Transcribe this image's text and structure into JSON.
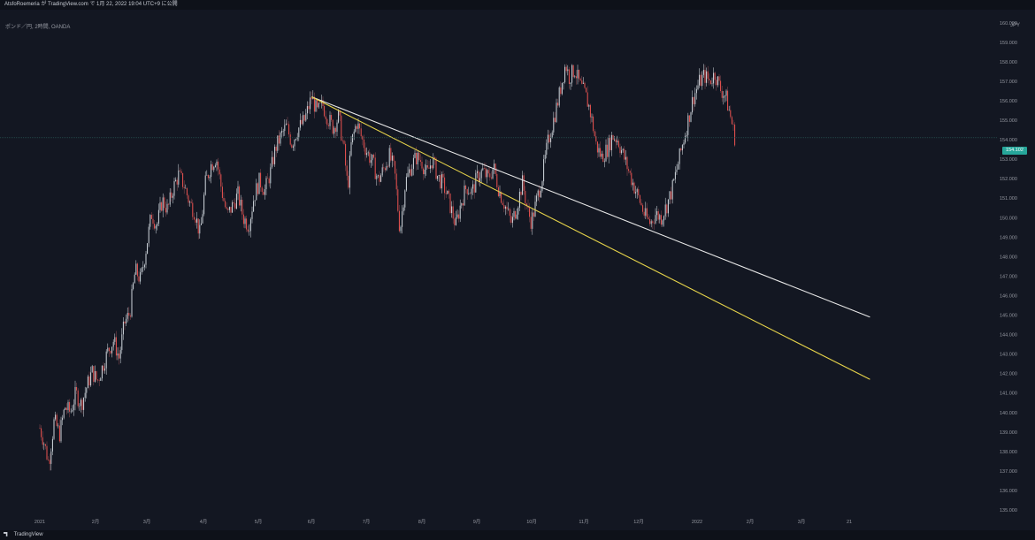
{
  "header": {
    "caption": "AtsfoRoemeria が TradingView.com で 1月 22, 2022 19:04 UTC+9 に公開"
  },
  "footer": {
    "brand": "TradingView"
  },
  "chart_data": {
    "type": "candlestick",
    "symbol_label": "ポンド／円, 2時間, OANDA",
    "currency": "JPY",
    "last_price": "154.102",
    "ylim": [
      135.0,
      160.4
    ],
    "y_ticks": [
      "160.000",
      "159.000",
      "158.000",
      "157.000",
      "156.000",
      "155.000",
      "154.000",
      "153.000",
      "152.000",
      "151.000",
      "150.000",
      "149.000",
      "148.000",
      "147.000",
      "146.000",
      "145.000",
      "144.000",
      "143.000",
      "142.000",
      "141.000",
      "140.000",
      "139.000",
      "138.000",
      "137.000",
      "136.000",
      "135.000"
    ],
    "x_ticks": [
      "2021",
      "2月",
      "3月",
      "4月",
      "5月",
      "6月",
      "7月",
      "8月",
      "9月",
      "10月",
      "11月",
      "12月",
      "2022",
      "2月",
      "3月",
      "21"
    ],
    "price_path": [
      [
        "2021-01-01",
        139.2
      ],
      [
        "2021-01-03",
        138.6
      ],
      [
        "2021-01-06",
        137.4
      ],
      [
        "2021-01-09",
        139.6
      ],
      [
        "2021-01-12",
        138.9
      ],
      [
        "2021-01-15",
        140.3
      ],
      [
        "2021-01-18",
        140.0
      ],
      [
        "2021-01-21",
        141.0
      ],
      [
        "2021-01-24",
        140.4
      ],
      [
        "2021-01-27",
        141.3
      ],
      [
        "2021-01-30",
        142.1
      ],
      [
        "2021-02-02",
        141.6
      ],
      [
        "2021-02-05",
        142.4
      ],
      [
        "2021-02-08",
        143.2
      ],
      [
        "2021-02-11",
        143.7
      ],
      [
        "2021-02-14",
        142.8
      ],
      [
        "2021-02-17",
        144.6
      ],
      [
        "2021-02-20",
        145.1
      ],
      [
        "2021-02-23",
        147.3
      ],
      [
        "2021-02-26",
        146.8
      ],
      [
        "2021-03-01",
        148.4
      ],
      [
        "2021-03-04",
        150.2
      ],
      [
        "2021-03-07",
        149.6
      ],
      [
        "2021-03-10",
        150.9
      ],
      [
        "2021-03-13",
        150.4
      ],
      [
        "2021-03-16",
        151.5
      ],
      [
        "2021-03-19",
        152.2
      ],
      [
        "2021-03-22",
        151.7
      ],
      [
        "2021-03-25",
        150.8
      ],
      [
        "2021-03-28",
        150.3
      ],
      [
        "2021-03-31",
        149.1
      ],
      [
        "2021-04-03",
        151.8
      ],
      [
        "2021-04-06",
        152.7
      ],
      [
        "2021-04-09",
        153.1
      ],
      [
        "2021-04-12",
        151.4
      ],
      [
        "2021-04-15",
        150.1
      ],
      [
        "2021-04-18",
        150.6
      ],
      [
        "2021-04-21",
        151.2
      ],
      [
        "2021-04-24",
        150.0
      ],
      [
        "2021-04-27",
        149.6
      ],
      [
        "2021-04-30",
        151.1
      ],
      [
        "2021-05-03",
        151.9
      ],
      [
        "2021-05-06",
        151.4
      ],
      [
        "2021-05-09",
        152.3
      ],
      [
        "2021-05-12",
        153.6
      ],
      [
        "2021-05-15",
        154.2
      ],
      [
        "2021-05-18",
        154.7
      ],
      [
        "2021-05-21",
        153.8
      ],
      [
        "2021-05-24",
        154.5
      ],
      [
        "2021-05-28",
        155.0
      ],
      [
        "2021-06-01",
        156.2
      ],
      [
        "2021-06-04",
        155.4
      ],
      [
        "2021-06-07",
        155.8
      ],
      [
        "2021-06-10",
        155.1
      ],
      [
        "2021-06-13",
        154.6
      ],
      [
        "2021-06-16",
        155.2
      ],
      [
        "2021-06-19",
        153.4
      ],
      [
        "2021-06-21",
        151.5
      ],
      [
        "2021-06-23",
        153.8
      ],
      [
        "2021-06-26",
        154.9
      ],
      [
        "2021-06-29",
        154.0
      ],
      [
        "2021-07-02",
        153.3
      ],
      [
        "2021-07-05",
        152.8
      ],
      [
        "2021-07-08",
        151.9
      ],
      [
        "2021-07-11",
        152.5
      ],
      [
        "2021-07-14",
        153.2
      ],
      [
        "2021-07-17",
        152.4
      ],
      [
        "2021-07-20",
        149.3
      ],
      [
        "2021-07-23",
        151.8
      ],
      [
        "2021-07-26",
        152.6
      ],
      [
        "2021-07-29",
        153.1
      ],
      [
        "2021-08-01",
        152.9
      ],
      [
        "2021-08-04",
        152.2
      ],
      [
        "2021-08-07",
        153.0
      ],
      [
        "2021-08-10",
        152.1
      ],
      [
        "2021-08-13",
        151.7
      ],
      [
        "2021-08-16",
        150.9
      ],
      [
        "2021-08-20",
        149.6
      ],
      [
        "2021-08-23",
        150.8
      ],
      [
        "2021-08-26",
        151.6
      ],
      [
        "2021-08-29",
        151.3
      ],
      [
        "2021-09-01",
        152.1
      ],
      [
        "2021-09-04",
        152.4
      ],
      [
        "2021-09-07",
        152.0
      ],
      [
        "2021-09-10",
        152.6
      ],
      [
        "2021-09-13",
        151.4
      ],
      [
        "2021-09-16",
        150.7
      ],
      [
        "2021-09-20",
        149.7
      ],
      [
        "2021-09-23",
        150.6
      ],
      [
        "2021-09-26",
        151.8
      ],
      [
        "2021-09-29",
        150.3
      ],
      [
        "2021-10-01",
        149.8
      ],
      [
        "2021-10-04",
        150.9
      ],
      [
        "2021-10-07",
        152.1
      ],
      [
        "2021-10-10",
        153.8
      ],
      [
        "2021-10-13",
        154.9
      ],
      [
        "2021-10-16",
        156.1
      ],
      [
        "2021-10-18",
        157.0
      ],
      [
        "2021-10-20",
        157.9
      ],
      [
        "2021-10-22",
        157.2
      ],
      [
        "2021-10-25",
        157.6
      ],
      [
        "2021-10-28",
        156.8
      ],
      [
        "2021-10-31",
        156.3
      ],
      [
        "2021-11-02",
        155.7
      ],
      [
        "2021-11-04",
        154.8
      ],
      [
        "2021-11-06",
        153.7
      ],
      [
        "2021-11-09",
        153.1
      ],
      [
        "2021-11-12",
        153.5
      ],
      [
        "2021-11-15",
        154.2
      ],
      [
        "2021-11-18",
        154.0
      ],
      [
        "2021-11-21",
        153.2
      ],
      [
        "2021-11-24",
        152.4
      ],
      [
        "2021-11-27",
        151.6
      ],
      [
        "2021-11-30",
        150.9
      ],
      [
        "2021-12-03",
        150.1
      ],
      [
        "2021-12-06",
        149.7
      ],
      [
        "2021-12-09",
        150.2
      ],
      [
        "2021-12-12",
        150.0
      ],
      [
        "2021-12-15",
        150.6
      ],
      [
        "2021-12-18",
        151.4
      ],
      [
        "2021-12-21",
        152.6
      ],
      [
        "2021-12-24",
        153.8
      ],
      [
        "2021-12-27",
        155.0
      ],
      [
        "2021-12-30",
        156.2
      ],
      [
        "2022-01-02",
        156.9
      ],
      [
        "2022-01-05",
        157.3
      ],
      [
        "2022-01-08",
        157.0
      ],
      [
        "2022-01-11",
        157.4
      ],
      [
        "2022-01-14",
        156.6
      ],
      [
        "2022-01-17",
        156.2
      ],
      [
        "2022-01-20",
        155.0
      ],
      [
        "2022-01-22",
        154.1
      ]
    ],
    "trendlines": [
      {
        "color": "#e8e8e8",
        "from": [
          "2021-06-01",
          156.2
        ],
        "to": [
          "2022-04-07",
          144.9
        ]
      },
      {
        "color": "#e6d34a",
        "from": [
          "2021-06-01",
          156.2
        ],
        "to": [
          "2022-04-07",
          141.7
        ]
      }
    ],
    "up_color": "#26a69a",
    "down_color": "#ef5350",
    "grid": false,
    "title": "",
    "xlabel": "",
    "ylabel": ""
  }
}
